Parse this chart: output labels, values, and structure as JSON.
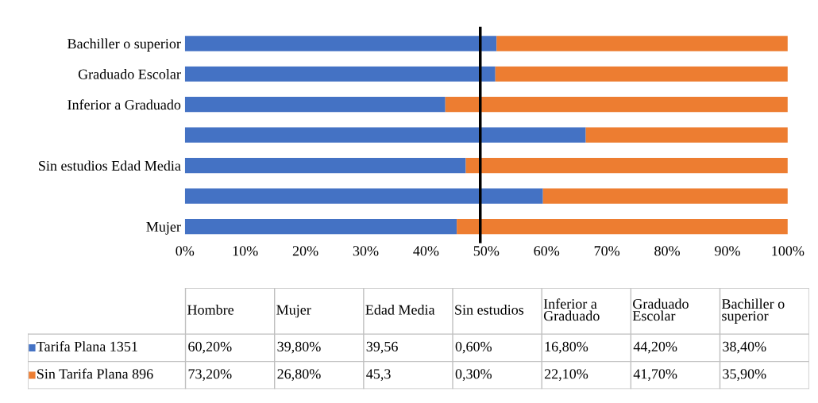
{
  "chart_data": [
    {
      "type": "bar",
      "orientation": "horizontal",
      "stacked": true,
      "categories": [
        "Bachiller o superior",
        "Graduado Escolar",
        "Inferior a Graduado",
        null,
        "Sin estudios Edad Media",
        null,
        "Mujer"
      ],
      "series": [
        {
          "color": "#4472c4",
          "values": [
            51.7,
            51.5,
            43.2,
            66.5,
            46.6,
            59.4,
            45.1
          ]
        },
        {
          "color": "#ed7d31",
          "values": [
            48.3,
            48.5,
            56.8,
            33.5,
            53.4,
            40.6,
            54.9
          ]
        }
      ],
      "xlim": [
        0,
        100
      ],
      "xticks": [
        {
          "value": 0,
          "label": "0%"
        },
        {
          "value": 10,
          "label": "10%"
        },
        {
          "value": 20,
          "label": "20%"
        },
        {
          "value": 30,
          "label": "30%"
        },
        {
          "value": 40,
          "label": "40%"
        },
        {
          "value": 50,
          "label": "50%"
        },
        {
          "value": 60,
          "label": "60%"
        },
        {
          "value": 70,
          "label": "70%"
        },
        {
          "value": 80,
          "label": "80%"
        },
        {
          "value": 90,
          "label": "90%"
        },
        {
          "value": 100,
          "label": "100%"
        }
      ],
      "ref_lines": [
        {
          "axis": "x",
          "value": 49,
          "color": "#000000"
        }
      ],
      "grid": false,
      "legend": false
    },
    {
      "type": "other",
      "categories": [
        "Hombre",
        "Mujer",
        "Edad Media",
        "Sin estudios",
        "Inferior a Graduado",
        "Graduado Escolar",
        "Bachiller o superior"
      ],
      "y_categories": [
        "Tarifa Plana 1351",
        "Sin Tarifa Plana 896"
      ],
      "colors": [
        "#4472c4",
        "#ed7d31"
      ],
      "cell_labels": [
        [
          "60,20%",
          "39,80%",
          "39,56",
          "0,60%",
          "16,80%",
          "44,20%",
          "38,40%"
        ],
        [
          "73,20%",
          "26,80%",
          "45,3",
          "0,30%",
          "22,10%",
          "41,70%",
          "35,90%"
        ]
      ]
    }
  ]
}
